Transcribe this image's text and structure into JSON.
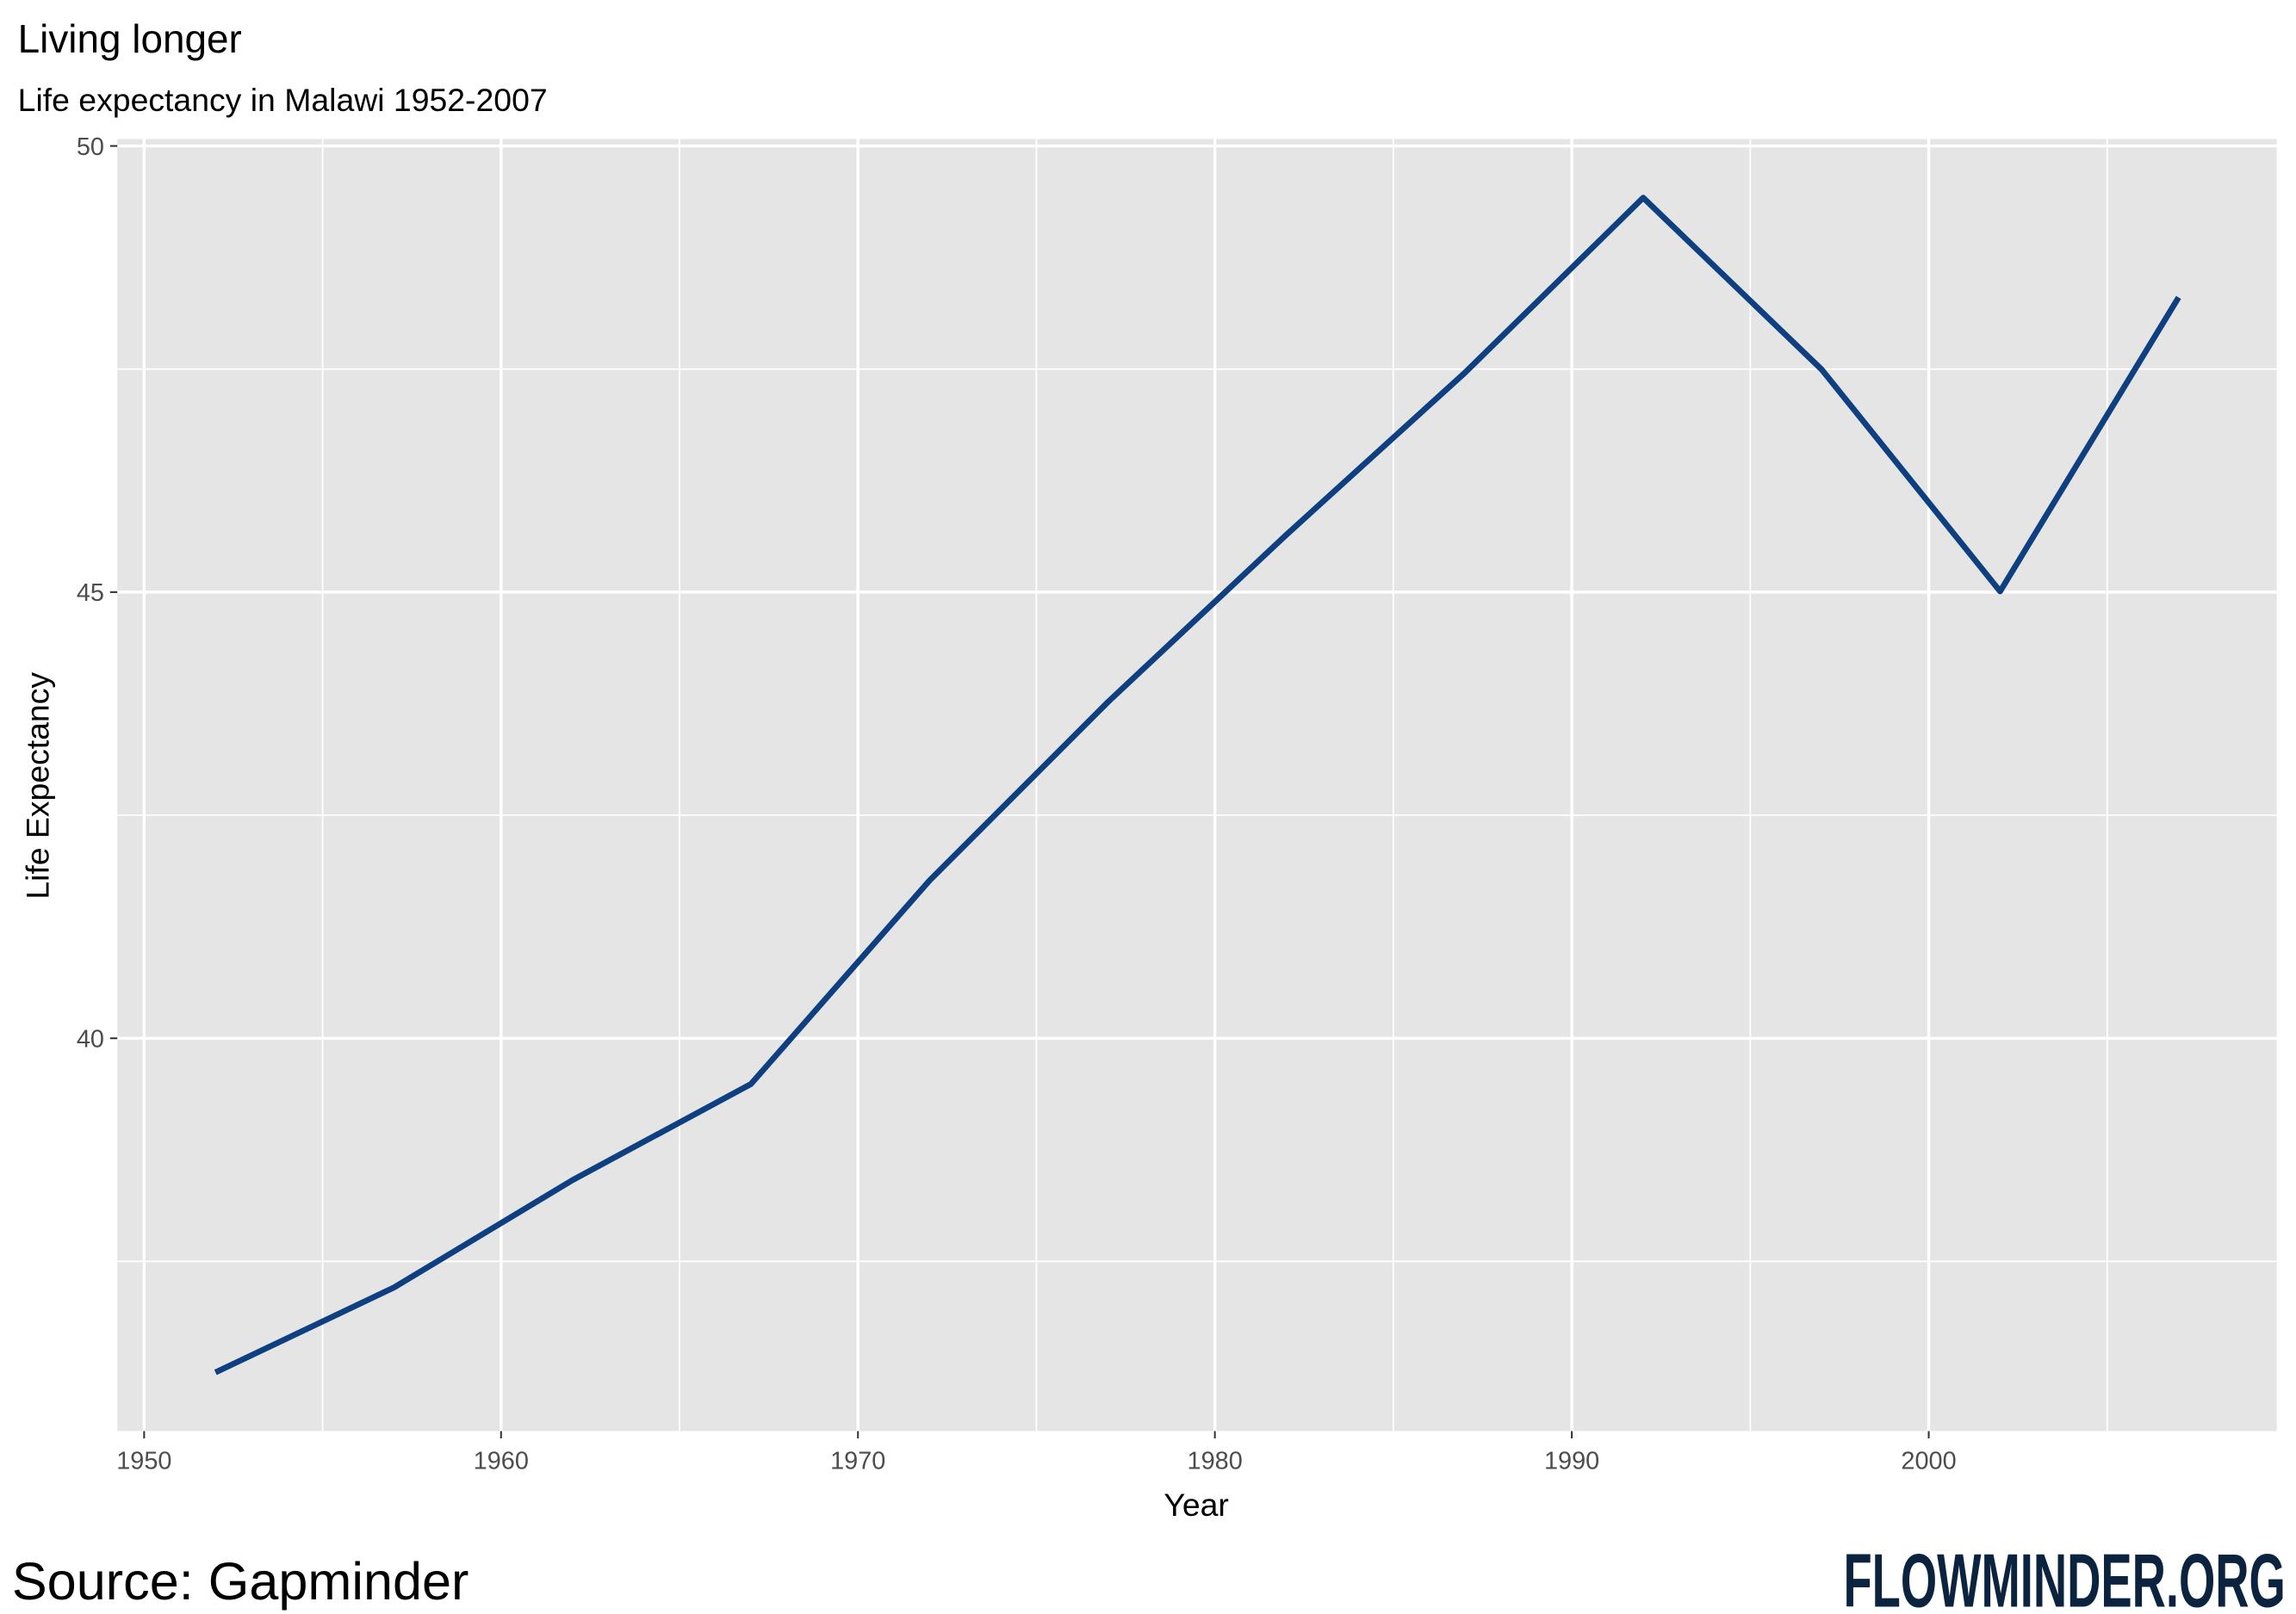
{
  "chart_data": {
    "type": "line",
    "title": "Living longer",
    "subtitle": "Life expectancy in Malawi 1952-2007",
    "x_label": "Year",
    "y_label": "Life Expectancy",
    "x": [
      1952,
      1957,
      1962,
      1967,
      1972,
      1977,
      1982,
      1987,
      1992,
      1997,
      2002,
      2007
    ],
    "values": [
      36.256,
      37.207,
      38.41,
      39.487,
      41.766,
      43.767,
      45.642,
      47.457,
      49.42,
      47.495,
      45.009,
      48.303
    ],
    "color": "#0e3f80",
    "xlim": [
      1949.25,
      2009.75
    ],
    "ylim": [
      35.598,
      50.078
    ],
    "xticks": [
      1950,
      1960,
      1970,
      1980,
      1990,
      2000
    ],
    "yticks": [
      40,
      45,
      50
    ],
    "grid": true
  },
  "footer": {
    "source": "Source: Gapminder",
    "brand": "FLOWMINDER.ORG"
  }
}
